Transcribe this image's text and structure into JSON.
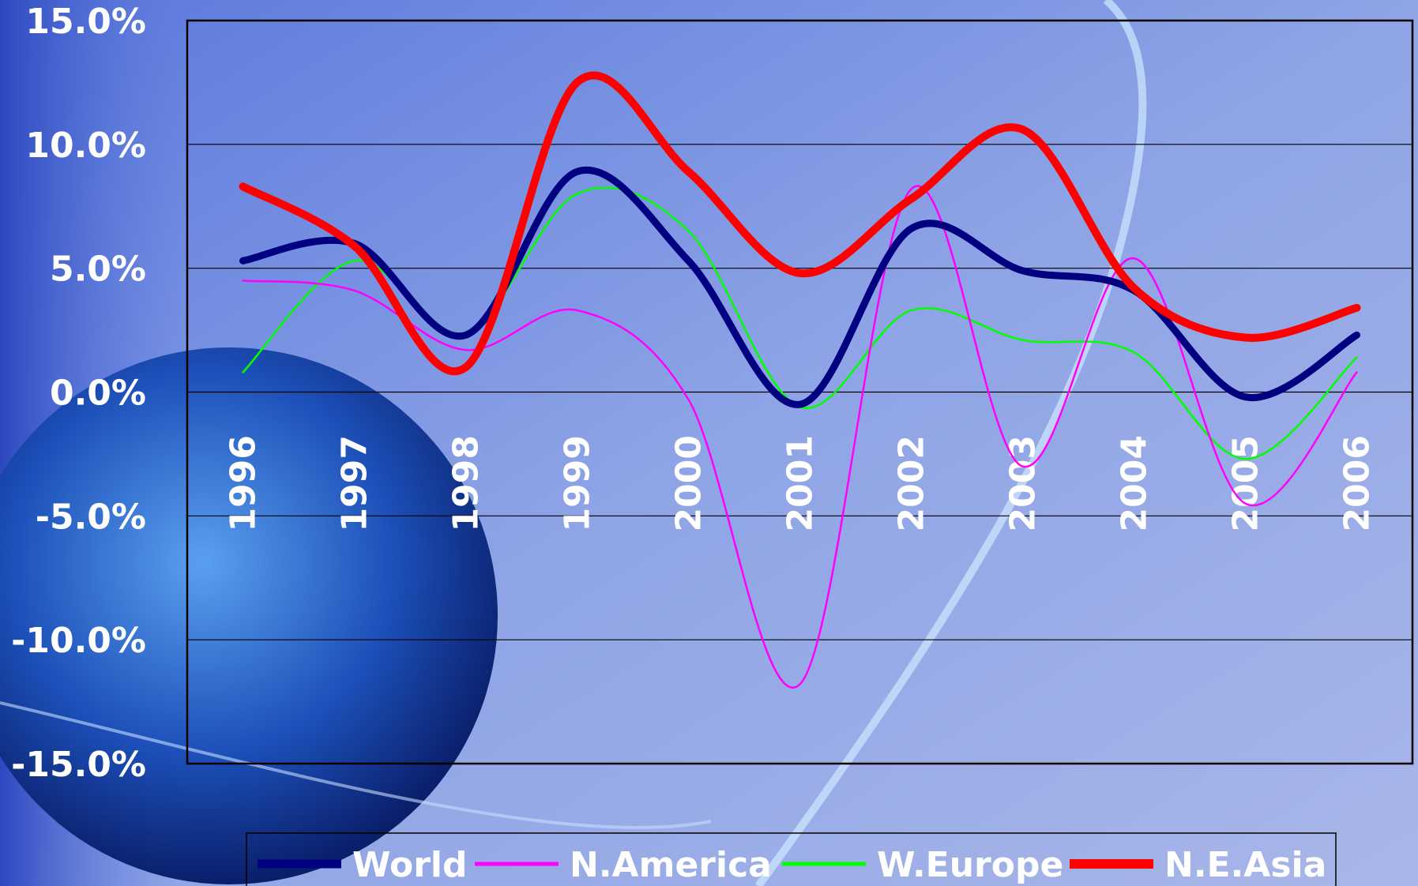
{
  "chart_data": {
    "type": "line",
    "categories": [
      "1996",
      "1997",
      "1998",
      "1999",
      "2000",
      "2001",
      "2002",
      "2003",
      "2004",
      "2005",
      "2006"
    ],
    "series": [
      {
        "name": "World",
        "color": "#000080",
        "values": [
          5.3,
          6.0,
          2.3,
          8.9,
          5.3,
          -0.5,
          6.6,
          4.9,
          4.1,
          -0.2,
          2.3
        ]
      },
      {
        "name": "N.America",
        "color": "#ff00ff",
        "values": [
          4.5,
          4.1,
          1.7,
          3.3,
          -0.3,
          -11.8,
          8.2,
          -3.0,
          5.4,
          -4.5,
          0.8
        ]
      },
      {
        "name": "W.Europe",
        "color": "#00ff00",
        "values": [
          0.8,
          5.3,
          2.4,
          8.0,
          6.5,
          -0.6,
          3.3,
          2.1,
          1.6,
          -2.7,
          1.4
        ]
      },
      {
        "name": "N.E.Asia",
        "color": "#ff0000",
        "values": [
          8.3,
          5.9,
          1.0,
          12.5,
          8.9,
          4.8,
          7.8,
          10.6,
          4.2,
          2.2,
          3.4
        ]
      }
    ],
    "ylim": [
      -15,
      15
    ],
    "yticks": [
      {
        "value": -15,
        "label": "-15.0%"
      },
      {
        "value": -10,
        "label": "-10.0%"
      },
      {
        "value": -5,
        "label": "-5.0%"
      },
      {
        "value": 0,
        "label": "0.0%"
      },
      {
        "value": 5,
        "label": "5.0%"
      },
      {
        "value": 10,
        "label": "10.0%"
      },
      {
        "value": 15,
        "label": "15.0%"
      }
    ],
    "grid": true,
    "legend": "bottom"
  }
}
